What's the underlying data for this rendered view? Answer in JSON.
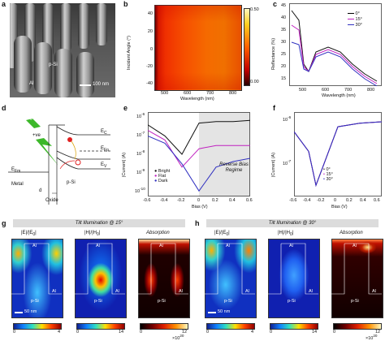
{
  "panels": {
    "a": {
      "label": "a",
      "material": "p-Si",
      "contact": "Al",
      "scalebar": "100 nm"
    },
    "b": {
      "label": "b",
      "ylabel": "Incident Angle (°)",
      "xlabel": "Wavelength (nm)",
      "yticks": [
        "40",
        "20",
        "0",
        "-20",
        "-40"
      ],
      "xticks": [
        "500",
        "600",
        "700",
        "800"
      ],
      "cbar_max": "0.50",
      "cbar_min": "0.00"
    },
    "c": {
      "label": "c",
      "ylabel": "Reflectance (%)",
      "xlabel": "Wavelength (nm)",
      "yticks": [
        "45",
        "40",
        "35",
        "30",
        "25",
        "20",
        "15"
      ],
      "xticks": [
        "500",
        "600",
        "700",
        "800"
      ],
      "legend": [
        "0°",
        "15°",
        "30°"
      ]
    },
    "d": {
      "label": "d",
      "light": "Light",
      "charge": "+ve",
      "ec": "E<sub>C</sub>",
      "efp": "E<sub>Fp</sub>",
      "ev": "E<sub>V</sub>",
      "efm": "E<sub>Fm</sub>",
      "metal": "Metal",
      "semi": "p-Si",
      "oxide": "Oxide",
      "dim": "d"
    },
    "e": {
      "label": "e",
      "ylabel": "|Current| (A)",
      "xlabel": "Bias (V)",
      "xticks": [
        "-0.6",
        "-0.4",
        "-0.2",
        "0",
        "0.2",
        "0.4",
        "0.6"
      ],
      "yticks": [
        "10<sup>-6</sup>",
        "10<sup>-7</sup>",
        "10<sup>-8</sup>",
        "10<sup>-9</sup>",
        "10<sup>-10</sup>"
      ],
      "legend": [
        "Bright",
        "Flat",
        "Dark"
      ],
      "region": "Reverse Bias Regime"
    },
    "f": {
      "label": "f",
      "ylabel": "|Current| (A)",
      "xlabel": "Bias (V)",
      "xticks": [
        "-0.6",
        "-0.4",
        "-0.2",
        "0",
        "0.2",
        "0.4",
        "0.6"
      ],
      "yticks": [
        "10<sup>-6</sup>",
        "10<sup>-7</sup>"
      ],
      "legend": [
        "0°",
        "15°",
        "30°"
      ]
    },
    "g": {
      "label": "g",
      "banner": "Tilt Illumination @ 15°",
      "titles": [
        "|E|/|E<sub>0</sub>|",
        "|H|/|H<sub>0</sub>|",
        "Absorption"
      ],
      "scalebar": "50 nm",
      "cbar": [
        [
          "0",
          "4"
        ],
        [
          "0",
          "14"
        ],
        [
          "0",
          "12"
        ]
      ],
      "cbar_exp": "×10<sup>20</sup>",
      "al": "Al",
      "psi": "p-Si"
    },
    "h": {
      "label": "h",
      "banner": "Tilt Illumination @ 30°",
      "titles": [
        "|E|/|E<sub>0</sub>|",
        "|H|/|H<sub>0</sub>|",
        "Absorption"
      ],
      "scalebar": "50 nm",
      "cbar": [
        [
          "0",
          "4"
        ],
        [
          "0",
          "14"
        ],
        [
          "0",
          "12"
        ]
      ],
      "cbar_exp": "×10<sup>20</sup>",
      "al": "Al",
      "psi": "p-Si"
    }
  },
  "chart_data": [
    {
      "panel": "c",
      "type": "line",
      "xlabel": "Wavelength (nm)",
      "ylabel": "Reflectance (%)",
      "x": [
        450,
        480,
        500,
        520,
        550,
        600,
        650,
        700,
        750,
        800
      ],
      "series": [
        {
          "name": "0°",
          "values": [
            44,
            40,
            22,
            19,
            27,
            29,
            27,
            22,
            18,
            15
          ]
        },
        {
          "name": "15°",
          "values": [
            38,
            36,
            21,
            19,
            26,
            28,
            26,
            21,
            17,
            14
          ]
        },
        {
          "name": "30°",
          "values": [
            31,
            30,
            20,
            19,
            25,
            27,
            25,
            20,
            16,
            13
          ]
        }
      ]
    },
    {
      "panel": "e",
      "type": "line",
      "xlabel": "Bias (V)",
      "ylabel": "|Current| (A)",
      "x": [
        -0.6,
        -0.4,
        -0.2,
        0,
        0.2,
        0.4,
        0.6
      ],
      "series": [
        {
          "name": "Bright",
          "values": [
            4e-07,
            1e-07,
            1e-08,
            5e-07,
            6e-07,
            6e-07,
            7e-07
          ]
        },
        {
          "name": "Flat",
          "values": [
            2e-07,
            6e-08,
            2e-09,
            2e-08,
            3e-08,
            3e-08,
            3e-08
          ]
        },
        {
          "name": "Dark",
          "values": [
            1e-07,
            4e-08,
            3e-09,
            1e-10,
            2e-09,
            4e-09,
            6e-09
          ]
        }
      ]
    },
    {
      "panel": "f",
      "type": "line",
      "xlabel": "Bias (V)",
      "ylabel": "|Current| (A)",
      "x": [
        -0.6,
        -0.4,
        -0.3,
        0,
        0.3,
        0.6
      ],
      "series": [
        {
          "name": "0°",
          "values": [
            4e-07,
            8e-08,
            5e-09,
            6e-07,
            8e-07,
            9e-07
          ]
        },
        {
          "name": "15°",
          "values": [
            4e-07,
            8e-08,
            5e-09,
            6e-07,
            8e-07,
            9e-07
          ]
        },
        {
          "name": "30°",
          "values": [
            4e-07,
            8e-08,
            5e-09,
            6e-07,
            8e-07,
            9e-07
          ]
        }
      ]
    }
  ]
}
